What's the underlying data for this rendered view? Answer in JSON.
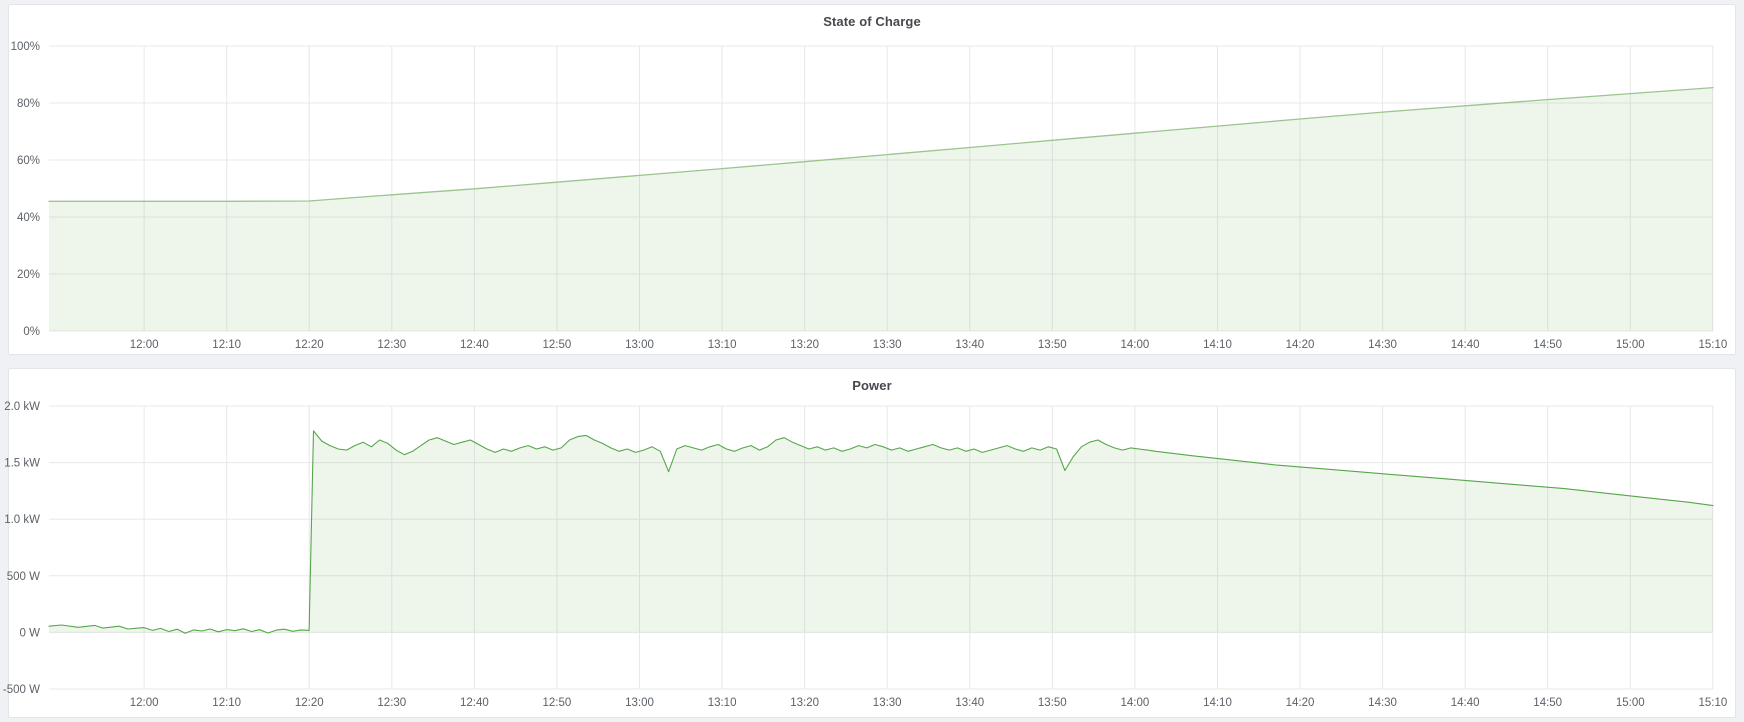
{
  "colors": {
    "page_background": "#eff1f5",
    "panel_background": "#ffffff",
    "panel_border": "#e2e6eb",
    "grid": "#e7e8e8",
    "axis_text": "#5c6268",
    "title_text": "#45494e",
    "soc_line": "#9cc48f",
    "soc_fill": "rgba(115,185,102,0.12)",
    "power_line": "#56a64b",
    "power_fill": "rgba(115,185,102,0.12)"
  },
  "chart_data": [
    {
      "type": "area",
      "title": "State of Charge",
      "xlabel": "",
      "ylabel": "",
      "legend": "none",
      "grid": true,
      "x_axis": {
        "min_hours": 11.808,
        "max_hours": 15.167,
        "ticks": [
          {
            "hours": 12.0,
            "label": "12:00"
          },
          {
            "hours": 12.1667,
            "label": "12:10"
          },
          {
            "hours": 12.3333,
            "label": "12:20"
          },
          {
            "hours": 12.5,
            "label": "12:30"
          },
          {
            "hours": 12.6667,
            "label": "12:40"
          },
          {
            "hours": 12.8333,
            "label": "12:50"
          },
          {
            "hours": 13.0,
            "label": "13:00"
          },
          {
            "hours": 13.1667,
            "label": "13:10"
          },
          {
            "hours": 13.3333,
            "label": "13:20"
          },
          {
            "hours": 13.5,
            "label": "13:30"
          },
          {
            "hours": 13.6667,
            "label": "13:40"
          },
          {
            "hours": 13.8333,
            "label": "13:50"
          },
          {
            "hours": 14.0,
            "label": "14:00"
          },
          {
            "hours": 14.1667,
            "label": "14:10"
          },
          {
            "hours": 14.3333,
            "label": "14:20"
          },
          {
            "hours": 14.5,
            "label": "14:30"
          },
          {
            "hours": 14.6667,
            "label": "14:40"
          },
          {
            "hours": 14.8333,
            "label": "14:50"
          },
          {
            "hours": 15.0,
            "label": "15:00"
          },
          {
            "hours": 15.1667,
            "label": "15:10"
          }
        ]
      },
      "y_axis": {
        "min": 0,
        "max": 100,
        "ticks": [
          {
            "value": 0,
            "label": "0%"
          },
          {
            "value": 20,
            "label": "20%"
          },
          {
            "value": 40,
            "label": "40%"
          },
          {
            "value": 60,
            "label": "60%"
          },
          {
            "value": 80,
            "label": "80%"
          },
          {
            "value": 100,
            "label": "100%"
          }
        ]
      },
      "series": [
        {
          "name": "State of Charge",
          "color": "#9cc48f",
          "fill": "rgba(115,185,102,0.12)",
          "line_width": 1.3,
          "baseline_value": 0,
          "segments": [
            {
              "pairs": [
                [
                  11.808,
                  45.5
                ],
                [
                  12.0,
                  45.5
                ],
                [
                  12.167,
                  45.5
                ],
                [
                  12.333,
                  45.6
                ],
                [
                  12.5,
                  47.8
                ],
                [
                  12.667,
                  49.9
                ],
                [
                  12.833,
                  52.2
                ],
                [
                  13.0,
                  54.6
                ],
                [
                  13.167,
                  57.0
                ],
                [
                  13.333,
                  59.4
                ],
                [
                  13.5,
                  61.9
                ],
                [
                  13.667,
                  64.4
                ],
                [
                  13.833,
                  66.9
                ],
                [
                  14.0,
                  69.4
                ],
                [
                  14.167,
                  71.9
                ],
                [
                  14.333,
                  74.4
                ],
                [
                  14.5,
                  76.8
                ],
                [
                  14.667,
                  79.0
                ],
                [
                  14.833,
                  81.2
                ],
                [
                  15.0,
                  83.3
                ],
                [
                  15.167,
                  85.4
                ]
              ]
            }
          ]
        }
      ]
    },
    {
      "type": "area",
      "title": "Power",
      "xlabel": "",
      "ylabel": "",
      "legend": "none",
      "grid": true,
      "x_axis": {
        "min_hours": 11.808,
        "max_hours": 15.167,
        "ticks": [
          {
            "hours": 12.0,
            "label": "12:00"
          },
          {
            "hours": 12.1667,
            "label": "12:10"
          },
          {
            "hours": 12.3333,
            "label": "12:20"
          },
          {
            "hours": 12.5,
            "label": "12:30"
          },
          {
            "hours": 12.6667,
            "label": "12:40"
          },
          {
            "hours": 12.8333,
            "label": "12:50"
          },
          {
            "hours": 13.0,
            "label": "13:00"
          },
          {
            "hours": 13.1667,
            "label": "13:10"
          },
          {
            "hours": 13.3333,
            "label": "13:20"
          },
          {
            "hours": 13.5,
            "label": "13:30"
          },
          {
            "hours": 13.6667,
            "label": "13:40"
          },
          {
            "hours": 13.8333,
            "label": "13:50"
          },
          {
            "hours": 14.0,
            "label": "14:00"
          },
          {
            "hours": 14.1667,
            "label": "14:10"
          },
          {
            "hours": 14.3333,
            "label": "14:20"
          },
          {
            "hours": 14.5,
            "label": "14:30"
          },
          {
            "hours": 14.6667,
            "label": "14:40"
          },
          {
            "hours": 14.8333,
            "label": "14:50"
          },
          {
            "hours": 15.0,
            "label": "15:00"
          },
          {
            "hours": 15.1667,
            "label": "15:10"
          }
        ]
      },
      "y_axis": {
        "min": -500,
        "max": 2000,
        "ticks": [
          {
            "value": -500,
            "label": "-500 W"
          },
          {
            "value": 0,
            "label": "0 W"
          },
          {
            "value": 500,
            "label": "500 W"
          },
          {
            "value": 1000,
            "label": "1.0 kW"
          },
          {
            "value": 1500,
            "label": "1.5 kW"
          },
          {
            "value": 2000,
            "label": "2.0 kW"
          }
        ]
      },
      "series": [
        {
          "name": "Power",
          "color": "#56a64b",
          "fill": "rgba(115,185,102,0.12)",
          "line_width": 1.1,
          "baseline_value": 0,
          "segments": [
            {
              "pairs": [
                [
                  11.808,
                  55
                ],
                [
                  11.833,
                  65
                ],
                [
                  11.867,
                  45
                ],
                [
                  11.9,
                  62
                ],
                [
                  11.917,
                  38
                ],
                [
                  11.95,
                  55
                ],
                [
                  11.967,
                  30
                ],
                [
                  12.0,
                  42
                ],
                [
                  12.017,
                  18
                ],
                [
                  12.033,
                  35
                ],
                [
                  12.05,
                  8
                ],
                [
                  12.067,
                  28
                ],
                [
                  12.083,
                  -8
                ],
                [
                  12.1,
                  22
                ],
                [
                  12.117,
                  12
                ],
                [
                  12.133,
                  30
                ],
                [
                  12.15,
                  5
                ],
                [
                  12.167,
                  25
                ],
                [
                  12.183,
                  15
                ],
                [
                  12.2,
                  32
                ],
                [
                  12.217,
                  8
                ],
                [
                  12.233,
                  24
                ],
                [
                  12.25,
                  -5
                ],
                [
                  12.267,
                  20
                ],
                [
                  12.283,
                  28
                ],
                [
                  12.3,
                  10
                ],
                [
                  12.317,
                  22
                ],
                [
                  12.333,
                  18
                ]
              ]
            },
            {
              "start_hours": 12.342,
              "step_minutes": 1,
              "values": [
                1780,
                1690,
                1650,
                1620,
                1610,
                1650,
                1680,
                1640,
                1700,
                1670,
                1610,
                1570,
                1600,
                1650,
                1700,
                1720,
                1690,
                1660,
                1680,
                1700,
                1660,
                1620,
                1590,
                1620,
                1600,
                1630,
                1650,
                1620,
                1640,
                1610,
                1630,
                1700,
                1730,
                1740,
                1700,
                1670,
                1630,
                1600,
                1620,
                1590,
                1610,
                1640,
                1600,
                1420,
                1620,
                1650,
                1630,
                1610,
                1640,
                1660,
                1620,
                1600,
                1630,
                1650,
                1610,
                1640,
                1700,
                1720,
                1680,
                1650,
                1620,
                1640,
                1610,
                1630,
                1600,
                1620,
                1650,
                1630,
                1660,
                1640,
                1610,
                1630,
                1600,
                1620,
                1640,
                1660,
                1630,
                1610,
                1630,
                1600,
                1620,
                1590,
                1610,
                1630,
                1650,
                1620,
                1600,
                1630,
                1610,
                1640,
                1620,
                1430,
                1550,
                1640,
                1680,
                1700,
                1660,
                1630,
                1610,
                1630,
                1620,
                1610,
                1600
              ]
            },
            {
              "pairs": [
                [
                  14.117,
                  1560
                ],
                [
                  14.2,
                  1520
                ],
                [
                  14.283,
                  1480
                ],
                [
                  14.367,
                  1450
                ],
                [
                  14.45,
                  1420
                ],
                [
                  14.533,
                  1390
                ],
                [
                  14.617,
                  1360
                ],
                [
                  14.7,
                  1330
                ],
                [
                  14.783,
                  1300
                ],
                [
                  14.867,
                  1270
                ],
                [
                  14.95,
                  1230
                ],
                [
                  15.033,
                  1190
                ],
                [
                  15.117,
                  1150
                ],
                [
                  15.167,
                  1120
                ]
              ]
            }
          ]
        }
      ]
    }
  ]
}
